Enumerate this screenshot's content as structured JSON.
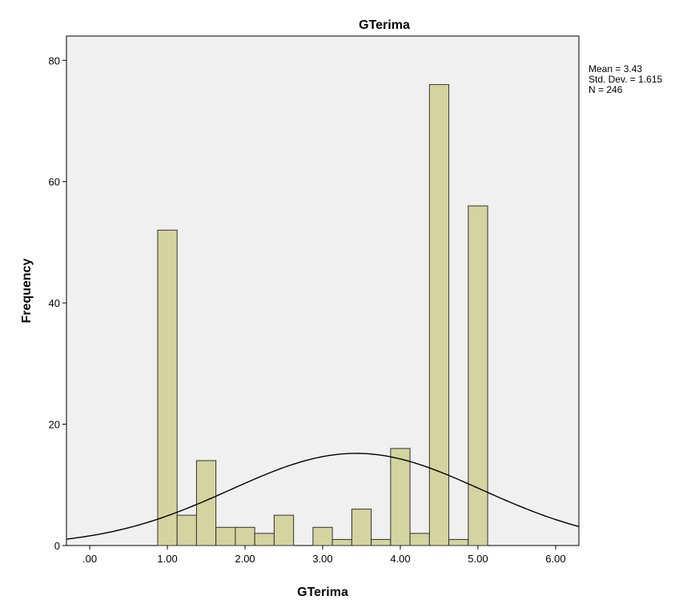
{
  "chart_data": {
    "type": "bar",
    "subtype": "histogram",
    "title": "GTerima",
    "xlabel": "GTerima",
    "ylabel": "Frequency",
    "xlim": [
      -0.3,
      6.3
    ],
    "ylim": [
      0,
      84
    ],
    "x_ticks": [
      0,
      1,
      2,
      3,
      4,
      5,
      6
    ],
    "x_tick_labels": [
      ".00",
      "1.00",
      "2.00",
      "3.00",
      "4.00",
      "5.00",
      "6.00"
    ],
    "y_ticks": [
      0,
      20,
      40,
      60,
      80
    ],
    "y_tick_labels": [
      "0",
      "20",
      "40",
      "60",
      "80"
    ],
    "bin_width": 0.25,
    "bins": [
      {
        "start": 0.875,
        "end": 1.125,
        "count": 52
      },
      {
        "start": 1.125,
        "end": 1.375,
        "count": 5
      },
      {
        "start": 1.375,
        "end": 1.625,
        "count": 14
      },
      {
        "start": 1.625,
        "end": 1.875,
        "count": 3
      },
      {
        "start": 1.875,
        "end": 2.125,
        "count": 3
      },
      {
        "start": 2.125,
        "end": 2.375,
        "count": 2
      },
      {
        "start": 2.375,
        "end": 2.625,
        "count": 5
      },
      {
        "start": 2.875,
        "end": 3.125,
        "count": 3
      },
      {
        "start": 3.125,
        "end": 3.375,
        "count": 1
      },
      {
        "start": 3.375,
        "end": 3.625,
        "count": 6
      },
      {
        "start": 3.625,
        "end": 3.875,
        "count": 1
      },
      {
        "start": 3.875,
        "end": 4.125,
        "count": 16
      },
      {
        "start": 4.125,
        "end": 4.375,
        "count": 2
      },
      {
        "start": 4.375,
        "end": 4.625,
        "count": 76
      },
      {
        "start": 4.625,
        "end": 4.875,
        "count": 1
      },
      {
        "start": 4.875,
        "end": 5.125,
        "count": 56
      }
    ],
    "normal_curve": {
      "mean": 3.43,
      "std_dev": 1.615,
      "n": 246
    },
    "stats": {
      "mean_label": "Mean = 3.43",
      "std_label": "Std. Dev. = 1.615",
      "n_label": "N = 246"
    },
    "colors": {
      "bar_fill": "#d4d4a0",
      "bar_stroke": "#333333",
      "plot_background": "#f0f0f0",
      "curve": "#000000"
    },
    "grid": false
  }
}
